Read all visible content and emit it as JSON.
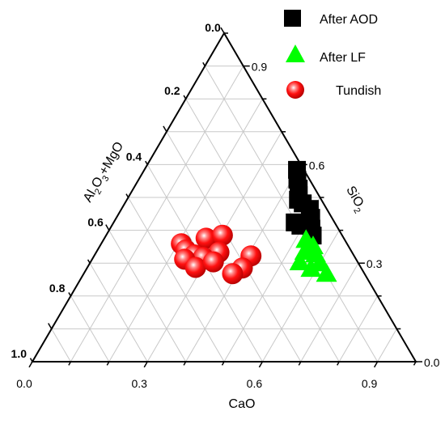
{
  "chart_data": {
    "type": "ternary-scatter",
    "axes": {
      "bottom": {
        "label": "CaO",
        "ticks": [
          "0.0",
          "0.3",
          "0.6",
          "0.9"
        ]
      },
      "left": {
        "label_main": "Al",
        "label_sub1": "2",
        "label_mid": "O",
        "label_sub2": "3",
        "label_tail": "+MgO",
        "ticks": [
          "0.2",
          "0.4",
          "0.6",
          "0.8",
          "1.0"
        ]
      },
      "right": {
        "label_main": "SiO",
        "label_sub": "2",
        "ticks": [
          "0.0",
          "0.3",
          "0.6",
          "0.9"
        ]
      },
      "apex_label": "0.0",
      "range": [
        0,
        1
      ],
      "grid": true
    },
    "legend": {
      "position": "top-right",
      "entries": [
        {
          "name": "After AOD",
          "marker": "square",
          "color": "#000000"
        },
        {
          "name": "After LF",
          "marker": "triangle",
          "color": "#00ff00"
        },
        {
          "name": "Tundish",
          "marker": "sphere",
          "color": "#ff0000"
        }
      ]
    },
    "series": [
      {
        "name": "After AOD",
        "marker": "square",
        "color": "#000000",
        "points": [
          {
            "CaO": 0.398,
            "SiO2": 0.584
          },
          {
            "CaO": 0.414,
            "SiO2": 0.554
          },
          {
            "CaO": 0.431,
            "SiO2": 0.527
          },
          {
            "CaO": 0.441,
            "SiO2": 0.507
          },
          {
            "CaO": 0.446,
            "SiO2": 0.493
          },
          {
            "CaO": 0.464,
            "SiO2": 0.482
          },
          {
            "CaO": 0.491,
            "SiO2": 0.465
          },
          {
            "CaO": 0.508,
            "SiO2": 0.438
          },
          {
            "CaO": 0.472,
            "SiO2": 0.424
          },
          {
            "CaO": 0.492,
            "SiO2": 0.414
          },
          {
            "CaO": 0.525,
            "SiO2": 0.405
          },
          {
            "CaO": 0.539,
            "SiO2": 0.384
          }
        ]
      },
      {
        "name": "After LF",
        "marker": "triangle",
        "color": "#00ff00",
        "points": [
          {
            "CaO": 0.528,
            "SiO2": 0.371
          },
          {
            "CaO": 0.556,
            "SiO2": 0.352
          },
          {
            "CaO": 0.543,
            "SiO2": 0.335
          },
          {
            "CaO": 0.575,
            "SiO2": 0.327
          },
          {
            "CaO": 0.546,
            "SiO2": 0.303
          },
          {
            "CaO": 0.6,
            "SiO2": 0.3
          },
          {
            "CaO": 0.585,
            "SiO2": 0.283
          },
          {
            "CaO": 0.633,
            "SiO2": 0.268
          }
        ]
      },
      {
        "name": "Tundish",
        "marker": "sphere",
        "color": "#ff0000",
        "points": [
          {
            "CaO": 0.209,
            "SiO2": 0.359
          },
          {
            "CaO": 0.265,
            "SiO2": 0.376
          },
          {
            "CaO": 0.303,
            "SiO2": 0.385
          },
          {
            "CaO": 0.23,
            "SiO2": 0.34
          },
          {
            "CaO": 0.26,
            "SiO2": 0.325
          },
          {
            "CaO": 0.32,
            "SiO2": 0.333
          },
          {
            "CaO": 0.287,
            "SiO2": 0.317
          },
          {
            "CaO": 0.241,
            "SiO2": 0.312
          },
          {
            "CaO": 0.282,
            "SiO2": 0.287
          },
          {
            "CaO": 0.32,
            "SiO2": 0.304
          },
          {
            "CaO": 0.409,
            "SiO2": 0.322
          },
          {
            "CaO": 0.405,
            "SiO2": 0.285
          },
          {
            "CaO": 0.388,
            "SiO2": 0.268
          }
        ]
      }
    ]
  }
}
